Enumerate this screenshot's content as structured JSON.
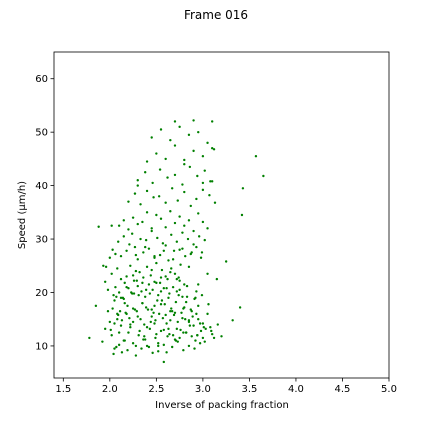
{
  "chart_data": {
    "type": "scatter",
    "title": "Frame 016",
    "xlabel": "Inverse of packing fraction",
    "ylabel": "Speed (μm/h)",
    "xlim": [
      1.4,
      5.0
    ],
    "ylim": [
      4,
      65
    ],
    "xticks": [
      1.5,
      2.0,
      2.5,
      3.0,
      3.5,
      4.0,
      4.5,
      5.0
    ],
    "xtick_labels": [
      "1.5",
      "2.0",
      "2.5",
      "3.0",
      "3.5",
      "4.0",
      "4.5",
      "5.0"
    ],
    "yticks": [
      10,
      20,
      30,
      40,
      50,
      60
    ],
    "ytick_labels": [
      "10",
      "20",
      "30",
      "40",
      "50",
      "60"
    ],
    "grid": false,
    "legend": "none",
    "marker_color": "#008000",
    "series": [
      {
        "x": [
          1.78,
          1.85,
          1.92,
          1.95,
          1.98,
          2.0,
          2.02,
          2.05,
          2.05,
          2.08,
          2.1,
          2.12,
          2.12,
          2.15,
          2.18,
          2.2,
          2.22,
          2.25,
          2.28,
          2.3,
          2.32,
          2.35,
          2.38,
          2.4,
          2.42,
          2.45,
          2.48,
          2.5,
          2.52,
          2.55,
          2.58,
          2.6,
          2.62,
          2.65,
          2.68,
          2.7,
          2.72,
          2.75,
          2.78,
          2.8,
          2.82,
          2.85,
          2.88,
          2.9,
          2.92,
          2.95,
          2.98,
          3.0,
          3.02,
          3.05,
          3.08,
          3.1,
          3.12,
          1.95,
          1.98,
          2.02,
          2.04,
          2.06,
          2.08,
          2.1,
          2.12,
          2.14,
          2.16,
          2.18,
          2.2,
          2.22,
          2.24,
          2.26,
          2.28,
          2.3,
          2.32,
          2.34,
          2.36,
          2.38,
          2.4,
          2.42,
          2.44,
          2.46,
          2.48,
          2.5,
          2.52,
          2.54,
          2.56,
          2.58,
          2.6,
          2.62,
          2.64,
          2.66,
          2.68,
          2.7,
          2.72,
          2.74,
          2.76,
          2.78,
          2.8,
          2.0,
          2.03,
          2.06,
          2.09,
          2.12,
          2.15,
          2.18,
          2.21,
          2.24,
          2.27,
          2.3,
          2.33,
          2.36,
          2.39,
          2.42,
          2.45,
          2.48,
          2.51,
          2.54,
          2.57,
          2.6,
          2.63,
          2.66,
          2.69,
          2.72,
          2.75,
          2.78,
          2.81,
          2.84,
          2.87,
          2.9,
          2.93,
          2.96,
          2.99,
          3.02,
          2.01,
          2.04,
          2.07,
          2.1,
          2.13,
          2.16,
          2.19,
          2.22,
          2.25,
          2.28,
          2.31,
          2.34,
          2.37,
          2.4,
          2.43,
          2.46,
          2.49,
          2.52,
          2.55,
          2.58,
          2.61,
          2.64,
          2.67,
          2.7,
          2.73,
          2.76,
          2.79,
          2.82,
          2.85,
          2.88,
          2.91,
          2.94,
          2.97,
          3.0,
          3.03,
          2.03,
          2.07,
          2.11,
          2.15,
          2.19,
          2.23,
          2.27,
          2.31,
          2.35,
          2.39,
          2.43,
          2.47,
          2.51,
          2.55,
          2.59,
          2.63,
          2.67,
          2.71,
          2.75,
          2.79,
          2.83,
          2.87,
          2.91,
          2.95,
          2.99,
          2.05,
          2.09,
          2.13,
          2.17,
          2.21,
          2.25,
          2.29,
          2.33,
          2.37,
          2.41,
          2.45,
          2.49,
          2.53,
          2.57,
          2.61,
          2.65,
          2.69,
          2.73,
          2.77,
          2.81,
          2.85,
          2.89,
          2.93,
          2.97,
          2.1,
          2.15,
          2.2,
          2.25,
          2.3,
          2.35,
          2.4,
          2.45,
          2.5,
          2.55,
          2.6,
          2.65,
          2.7,
          2.75,
          2.8,
          2.85,
          2.9,
          2.95,
          3.0,
          3.05,
          2.2,
          2.27,
          2.33,
          2.4,
          2.47,
          2.53,
          2.6,
          2.67,
          2.73,
          2.8,
          2.87,
          2.93,
          3.0,
          3.07,
          3.13,
          2.3,
          2.38,
          2.46,
          2.54,
          2.62,
          2.7,
          2.78,
          2.86,
          2.94,
          3.02,
          3.1,
          2.4,
          2.5,
          2.6,
          2.7,
          2.8,
          2.9,
          3.0,
          3.1,
          2.45,
          2.55,
          2.65,
          2.75,
          2.85,
          2.95,
          3.05,
          2.25,
          2.35,
          2.45,
          2.55,
          2.65,
          2.75,
          2.85,
          2.95,
          3.05,
          3.15,
          2.28,
          2.38,
          2.48,
          2.58,
          2.68,
          2.78,
          2.88,
          2.98,
          2.7,
          2.9,
          3.1,
          2.8,
          3.0,
          3.12,
          3.08,
          3.25,
          3.32,
          3.4,
          3.42,
          3.43,
          3.57,
          3.65,
          1.96,
          2.02,
          2.58,
          2.3,
          1.88,
          1.93,
          2.08,
          2.36,
          2.44,
          2.52,
          2.63,
          2.71,
          2.79,
          2.86,
          2.94,
          3.01,
          3.09,
          3.16,
          3.2,
          2.16,
          2.26,
          2.48,
          2.56,
          2.66,
          2.74,
          2.82,
          2.92,
          3.06,
          2.18,
          2.29,
          2.39,
          2.5,
          2.61,
          2.72,
          2.83,
          2.93
        ],
        "y": [
          11.5,
          17.5,
          10.8,
          13.2,
          16.5,
          14.5,
          12.0,
          18.5,
          9.5,
          15.0,
          10.2,
          19.0,
          13.8,
          11.0,
          16.0,
          12.5,
          14.0,
          17.0,
          10.0,
          15.5,
          12.8,
          18.0,
          11.2,
          13.5,
          9.8,
          16.8,
          14.2,
          12.2,
          10.5,
          17.8,
          13.0,
          15.8,
          11.8,
          14.8,
          12.0,
          16.2,
          13.2,
          11.5,
          15.2,
          17.2,
          12.5,
          14.5,
          16.5,
          13.8,
          11.0,
          15.0,
          12.8,
          14.2,
          10.8,
          16.0,
          13.5,
          12.2,
          11.5,
          22.0,
          20.5,
          23.5,
          19.5,
          21.0,
          24.5,
          20.0,
          22.5,
          19.0,
          21.8,
          23.0,
          20.8,
          25.0,
          19.8,
          22.2,
          24.0,
          21.2,
          23.8,
          20.2,
          22.8,
          19.2,
          24.8,
          21.5,
          23.2,
          20.5,
          22.0,
          25.5,
          19.5,
          21.8,
          24.2,
          20.8,
          23.0,
          22.5,
          19.8,
          24.5,
          21.0,
          23.5,
          20.2,
          22.8,
          25.2,
          19.2,
          21.5,
          26.5,
          28.0,
          27.2,
          29.5,
          26.8,
          30.5,
          27.8,
          29.0,
          31.0,
          28.5,
          26.2,
          30.0,
          27.5,
          29.8,
          28.2,
          31.5,
          26.5,
          30.2,
          27.0,
          29.2,
          28.8,
          26.0,
          30.8,
          27.8,
          29.5,
          28.0,
          31.2,
          26.8,
          30.0,
          27.2,
          29.0,
          28.5,
          30.5,
          27.5,
          29.8,
          13.0,
          8.5,
          9.8,
          12.5,
          8.8,
          11.0,
          9.2,
          13.5,
          10.5,
          8.2,
          12.0,
          9.5,
          11.8,
          10.0,
          13.2,
          8.7,
          11.5,
          9.0,
          12.8,
          10.2,
          8.8,
          12.2,
          9.8,
          11.2,
          10.8,
          13.0,
          9.2,
          12.5,
          10.0,
          11.8,
          9.5,
          12.0,
          10.5,
          11.5,
          13.2,
          17.0,
          19.2,
          16.5,
          18.8,
          17.5,
          20.0,
          16.8,
          19.5,
          18.0,
          17.2,
          19.8,
          16.2,
          18.5,
          20.2,
          17.8,
          19.0,
          16.5,
          18.2,
          20.5,
          17.0,
          19.2,
          16.8,
          18.8,
          17.5,
          19.5,
          14.2,
          15.8,
          14.8,
          16.2,
          15.2,
          14.5,
          16.5,
          15.0,
          14.0,
          16.8,
          15.5,
          14.8,
          16.0,
          15.2,
          14.2,
          16.5,
          15.8,
          14.5,
          16.2,
          15.0,
          14.8,
          15.5,
          16.0,
          14.2,
          32.5,
          33.5,
          31.8,
          34.0,
          32.8,
          33.2,
          35.0,
          32.0,
          34.5,
          33.8,
          32.2,
          35.2,
          33.0,
          34.2,
          32.5,
          33.5,
          31.5,
          34.8,
          33.2,
          32.0,
          37.0,
          38.5,
          36.5,
          39.0,
          37.8,
          38.0,
          36.8,
          39.5,
          37.2,
          38.8,
          36.2,
          37.5,
          39.2,
          38.2,
          36.8,
          41.0,
          42.5,
          40.5,
          43.0,
          41.5,
          42.0,
          40.2,
          43.5,
          41.8,
          42.8,
          40.8,
          44.5,
          46.0,
          45.0,
          47.5,
          44.8,
          46.5,
          45.5,
          47.0,
          49.0,
          50.5,
          48.5,
          51.0,
          49.5,
          50.0,
          48.0,
          23.2,
          21.8,
          24.2,
          22.8,
          23.8,
          22.2,
          24.8,
          21.5,
          23.5,
          22.5,
          27.0,
          28.5,
          26.8,
          27.8,
          26.2,
          28.2,
          27.5,
          26.5,
          52.0,
          52.2,
          52.0,
          44.0,
          40.5,
          46.8,
          40.8,
          25.8,
          14.8,
          17.2,
          34.5,
          39.5,
          45.5,
          41.8,
          24.8,
          32.5,
          7.0,
          40.0,
          32.3,
          25.0,
          16.0,
          11.2,
          14.5,
          10.0,
          13.2,
          11.0,
          12.5,
          13.8,
          12.0,
          13.5,
          12.8,
          14.0,
          11.8,
          18.0,
          19.8,
          17.5,
          18.5,
          17.0,
          19.5,
          18.2,
          19.0,
          17.8,
          21.0,
          22.2,
          20.5,
          21.8,
          20.8,
          22.5,
          21.2,
          20.2
        ]
      }
    ]
  }
}
